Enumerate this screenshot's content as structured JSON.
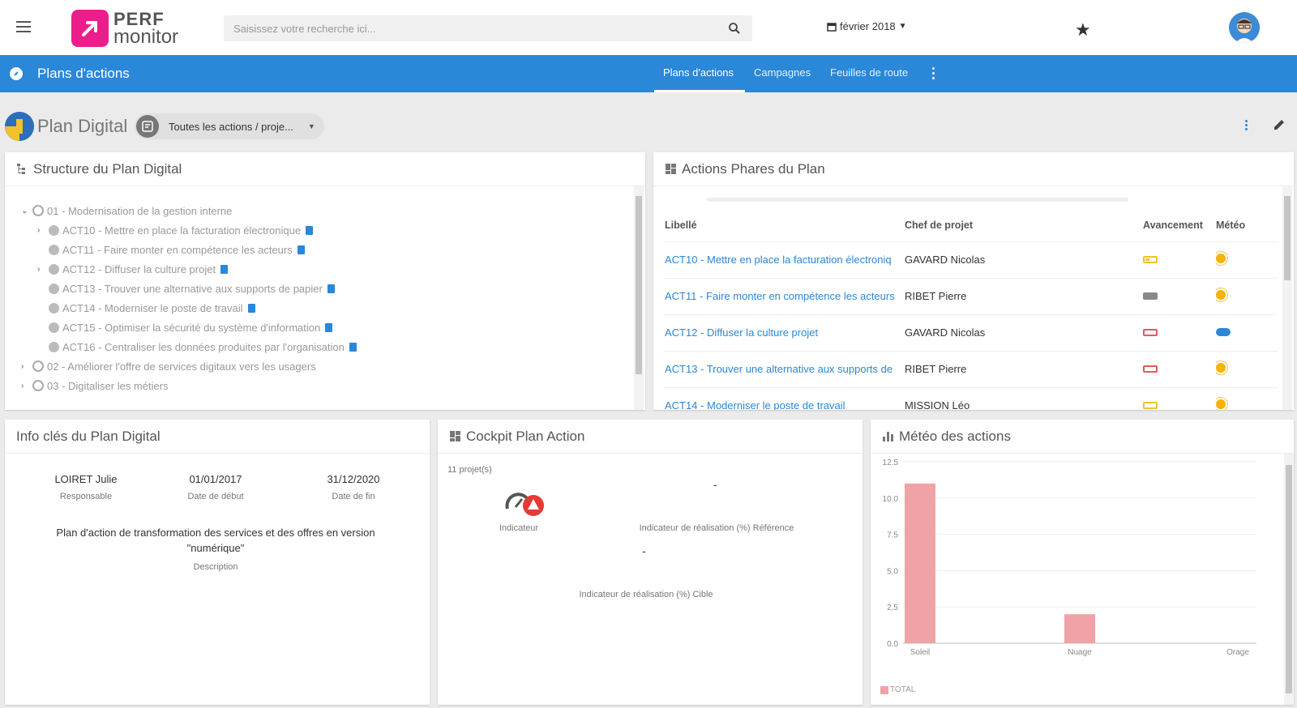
{
  "topbar": {
    "logo_line1": "PERF",
    "logo_line2": "monitor",
    "search_placeholder": "Saisissez votre recherche ici...",
    "date_label": "février 2018"
  },
  "nav": {
    "section_title": "Plans d'actions",
    "tabs": [
      {
        "label": "Plans d'actions",
        "active": true
      },
      {
        "label": "Campagnes",
        "active": false
      },
      {
        "label": "Feuilles de route",
        "active": false
      }
    ]
  },
  "plan": {
    "title": "Plan Digital",
    "filter_label": "Toutes les actions / proje..."
  },
  "structure": {
    "title": "Structure du Plan Digital",
    "items": [
      {
        "label": "01 - Modernisation de la gestion interne",
        "level": 0,
        "expanded": true
      },
      {
        "label": "ACT10 - Mettre en place la facturation électronique",
        "level": 1,
        "has_children": true
      },
      {
        "label": "ACT11 - Faire monter en compétence les acteurs",
        "level": 1,
        "has_children": false
      },
      {
        "label": "ACT12 - Diffuser la culture projet",
        "level": 1,
        "has_children": true
      },
      {
        "label": "ACT13 - Trouver une alternative aux supports de papier",
        "level": 1,
        "has_children": false
      },
      {
        "label": "ACT14 - Moderniser le poste de travail",
        "level": 1,
        "has_children": false
      },
      {
        "label": "ACT15 - Optimiser la sécurité du système d'information",
        "level": 1,
        "has_children": false
      },
      {
        "label": "ACT16 - Centraliser les données produites par l'organisation",
        "level": 1,
        "has_children": false
      },
      {
        "label": "02 - Améliorer l'offre de services digitaux vers les usagers",
        "level": 0,
        "expanded": false
      },
      {
        "label": "03 - Digitaliser les métiers",
        "level": 0,
        "expanded": false
      }
    ]
  },
  "phares": {
    "title": "Actions Phares du Plan",
    "columns": [
      "Libellé",
      "Chef de projet",
      "Avancement",
      "Météo"
    ],
    "rows": [
      {
        "libelle": "ACT10 - Mettre en place la facturation électroniq",
        "chef": "GAVARD Nicolas",
        "avancement": "low",
        "meteo": "soleil"
      },
      {
        "libelle": "ACT11 - Faire monter en compétence les acteurs",
        "chef": "RIBET Pierre",
        "avancement": "full",
        "meteo": "soleil"
      },
      {
        "libelle": "ACT12 - Diffuser la culture projet",
        "chef": "GAVARD Nicolas",
        "avancement": "empty",
        "meteo": "nuage"
      },
      {
        "libelle": "ACT13 - Trouver une alternative aux supports de",
        "chef": "RIBET Pierre",
        "avancement": "empty",
        "meteo": "soleil"
      },
      {
        "libelle": "ACT14 - Moderniser le poste de travail",
        "chef": "MISSION Léo",
        "avancement": "low",
        "meteo": "soleil"
      }
    ],
    "colors": {
      "low": "#f2c12e",
      "full": "#888888",
      "empty": "#e05a5a"
    }
  },
  "info": {
    "title": "Info clés du Plan Digital",
    "responsable_value": "LOIRET Julie",
    "responsable_label": "Responsable",
    "debut_value": "01/01/2017",
    "debut_label": "Date de début",
    "fin_value": "31/12/2020",
    "fin_label": "Date de fin",
    "description_value": "Plan d'action de transformation des services et des offres en version \"numérique\"",
    "description_label": "Description"
  },
  "cockpit": {
    "title": "Cockpit Plan Action",
    "projects_count": "11 projet(s)",
    "indicateur_label": "Indicateur",
    "reference_value": "-",
    "reference_label": "Indicateur de réalisation (%) Référence",
    "cible_value": "-",
    "cible_label": "Indicateur de réalisation (%) Cible"
  },
  "meteo_chart": {
    "title": "Météo des actions",
    "legend_label": "TOTAL"
  },
  "chart_data": {
    "type": "bar",
    "categories": [
      "Soleil",
      "Nuage",
      "Orage"
    ],
    "series": [
      {
        "name": "TOTAL",
        "values": [
          11,
          2,
          0
        ],
        "color": "#f0a3a6"
      }
    ],
    "ylim": [
      0,
      12.5
    ],
    "yticks": [
      "0.0",
      "2.5",
      "5.0",
      "7.5",
      "10.0",
      "12.5"
    ],
    "grid": true,
    "legend": "bottom-left"
  }
}
